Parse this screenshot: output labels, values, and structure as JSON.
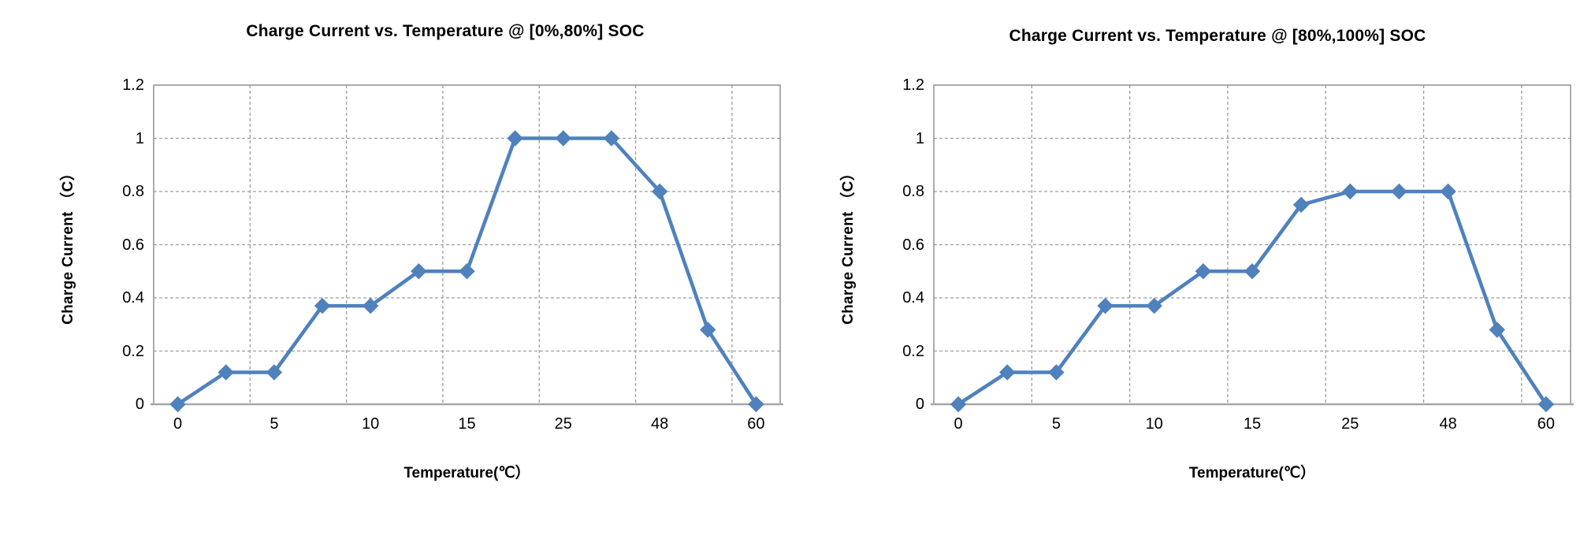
{
  "page": {
    "background": "#ffffff"
  },
  "chart_data": [
    {
      "type": "line",
      "title": "Charge Current vs. Temperature @ [0%,80%] SOC",
      "xlabel": "Temperature(℃）",
      "ylabel": "Charge Current （C）",
      "series": [
        {
          "name": "Charge Current",
          "values": [
            0,
            0.12,
            0.12,
            0.37,
            0.37,
            0.5,
            0.5,
            1,
            1,
            1,
            0.8,
            0.28,
            0
          ]
        }
      ],
      "x_tick_labels": [
        "0",
        "5",
        "10",
        "15",
        "25",
        "48",
        "60"
      ],
      "x_tick_point_indices": [
        0,
        2,
        4,
        6,
        8,
        10,
        12
      ],
      "y_tick_labels": [
        "0",
        "0.2",
        "0.4",
        "0.6",
        "0.8",
        "1",
        "1.2"
      ],
      "y_tick_values": [
        0,
        0.2,
        0.4,
        0.6,
        0.8,
        1,
        1.2
      ],
      "ylim": [
        0,
        1.2
      ],
      "grid": "dashed",
      "legend": "none",
      "line_color": "#4F81BD",
      "marker": "diamond",
      "gridline_color": "#9d9d9d",
      "border_color": "#808080",
      "axis_line_color": "#a6a6a6"
    },
    {
      "type": "line",
      "title": "Charge Current vs. Temperature @ [80%,100%] SOC",
      "xlabel": "Temperature(℃）",
      "ylabel": "Charge Current （C）",
      "series": [
        {
          "name": "Charge Current",
          "values": [
            0,
            0.12,
            0.12,
            0.37,
            0.37,
            0.5,
            0.5,
            0.75,
            0.8,
            0.8,
            0.8,
            0.28,
            0
          ]
        }
      ],
      "x_tick_labels": [
        "0",
        "5",
        "10",
        "15",
        "25",
        "48",
        "60"
      ],
      "x_tick_point_indices": [
        0,
        2,
        4,
        6,
        8,
        10,
        12
      ],
      "y_tick_labels": [
        "0",
        "0.2",
        "0.4",
        "0.6",
        "0.8",
        "1",
        "1.2"
      ],
      "y_tick_values": [
        0,
        0.2,
        0.4,
        0.6,
        0.8,
        1,
        1.2
      ],
      "ylim": [
        0,
        1.2
      ],
      "grid": "dashed",
      "legend": "none",
      "line_color": "#4F81BD",
      "marker": "diamond",
      "gridline_color": "#9d9d9d",
      "border_color": "#808080",
      "axis_line_color": "#a6a6a6"
    }
  ]
}
